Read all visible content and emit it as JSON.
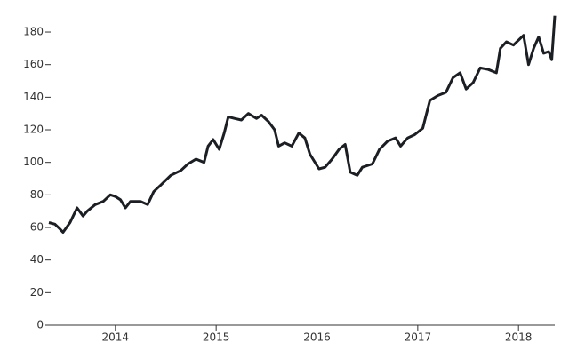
{
  "chart_data": {
    "type": "line",
    "color": "#1b1e23",
    "x": [
      2013.34,
      2013.4,
      2013.45,
      2013.48,
      2013.55,
      2013.62,
      2013.68,
      2013.72,
      2013.8,
      2013.88,
      2013.95,
      2014.0,
      2014.05,
      2014.1,
      2014.15,
      2014.25,
      2014.32,
      2014.38,
      2014.45,
      2014.55,
      2014.65,
      2014.72,
      2014.8,
      2014.88,
      2014.92,
      2014.97,
      2015.03,
      2015.08,
      2015.12,
      2015.18,
      2015.25,
      2015.32,
      2015.4,
      2015.45,
      2015.52,
      2015.58,
      2015.62,
      2015.68,
      2015.75,
      2015.82,
      2015.88,
      2015.93,
      2016.02,
      2016.08,
      2016.15,
      2016.22,
      2016.28,
      2016.33,
      2016.4,
      2016.45,
      2016.55,
      2016.62,
      2016.7,
      2016.78,
      2016.83,
      2016.9,
      2016.97,
      2017.05,
      2017.12,
      2017.2,
      2017.28,
      2017.35,
      2017.42,
      2017.48,
      2017.55,
      2017.62,
      2017.7,
      2017.78,
      2017.82,
      2017.88,
      2017.95,
      2018.0,
      2018.05,
      2018.1,
      2018.15,
      2018.2,
      2018.25,
      2018.3,
      2018.33,
      2018.36
    ],
    "values": [
      63,
      62,
      59,
      57,
      63,
      72,
      67,
      70,
      74,
      76,
      80,
      79,
      77,
      72,
      76,
      76,
      74,
      82,
      86,
      92,
      95,
      99,
      102,
      100,
      110,
      114,
      108,
      118,
      128,
      127,
      126,
      130,
      127,
      129,
      125,
      120,
      110,
      112,
      110,
      118,
      115,
      105,
      96,
      97,
      102,
      108,
      111,
      94,
      92,
      97,
      99,
      108,
      113,
      115,
      110,
      115,
      117,
      121,
      138,
      141,
      143,
      152,
      155,
      145,
      149,
      158,
      157,
      155,
      170,
      174,
      172,
      175,
      178,
      160,
      170,
      177,
      167,
      168,
      163,
      190
    ],
    "xlim": [
      2013.34,
      2018.36
    ],
    "xticks": [
      2014,
      2015,
      2016,
      2017,
      2018
    ],
    "ylim": [
      0,
      190
    ],
    "yticks": [
      0,
      20,
      40,
      60,
      80,
      100,
      120,
      140,
      160,
      180
    ]
  }
}
